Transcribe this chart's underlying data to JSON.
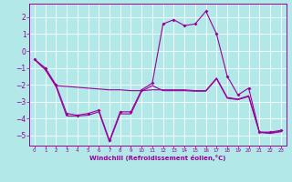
{
  "xlabel": "Windchill (Refroidissement éolien,°C)",
  "bg_color": "#b2e8e8",
  "grid_color": "#ffffff",
  "line_color": "#990099",
  "xlim": [
    -0.5,
    23.5
  ],
  "ylim": [
    -5.6,
    2.8
  ],
  "yticks": [
    -5,
    -4,
    -3,
    -2,
    -1,
    0,
    1,
    2
  ],
  "xticks": [
    0,
    1,
    2,
    3,
    4,
    5,
    6,
    7,
    8,
    9,
    10,
    11,
    12,
    13,
    14,
    15,
    16,
    17,
    18,
    19,
    20,
    21,
    22,
    23
  ],
  "line1_x": [
    0,
    1,
    2,
    3,
    4,
    5,
    6,
    7,
    8,
    9,
    10,
    11,
    12,
    13,
    14,
    15,
    16,
    17,
    18,
    19,
    20,
    21,
    22,
    23
  ],
  "line1_y": [
    -0.5,
    -1.0,
    -2.0,
    -3.7,
    -3.8,
    -3.7,
    -3.5,
    -5.3,
    -3.6,
    -3.6,
    -2.3,
    -1.9,
    1.6,
    1.85,
    1.5,
    1.6,
    2.35,
    1.0,
    -1.5,
    -2.6,
    -2.2,
    -4.8,
    -4.8,
    -4.7
  ],
  "line2_x": [
    0,
    1,
    2,
    3,
    4,
    5,
    6,
    7,
    8,
    9,
    10,
    11,
    12,
    13,
    14,
    15,
    16,
    17,
    18,
    19,
    20,
    21,
    22,
    23
  ],
  "line2_y": [
    -0.5,
    -1.1,
    -2.05,
    -2.1,
    -2.15,
    -2.2,
    -2.25,
    -2.3,
    -2.3,
    -2.35,
    -2.35,
    -2.3,
    -2.3,
    -2.3,
    -2.3,
    -2.35,
    -2.35,
    -1.6,
    -2.75,
    -2.85,
    -2.65,
    -4.8,
    -4.85,
    -4.75
  ],
  "line3_x": [
    0,
    1,
    2,
    3,
    4,
    5,
    6,
    7,
    8,
    9,
    10,
    11,
    12,
    13,
    14,
    15,
    16,
    17,
    18,
    19,
    20,
    21,
    22,
    23
  ],
  "line3_y": [
    -0.5,
    -1.1,
    -2.1,
    -3.85,
    -3.85,
    -3.8,
    -3.6,
    -5.38,
    -3.72,
    -3.72,
    -2.38,
    -2.05,
    -2.35,
    -2.35,
    -2.35,
    -2.38,
    -2.38,
    -1.65,
    -2.8,
    -2.88,
    -2.7,
    -4.82,
    -4.88,
    -4.78
  ]
}
